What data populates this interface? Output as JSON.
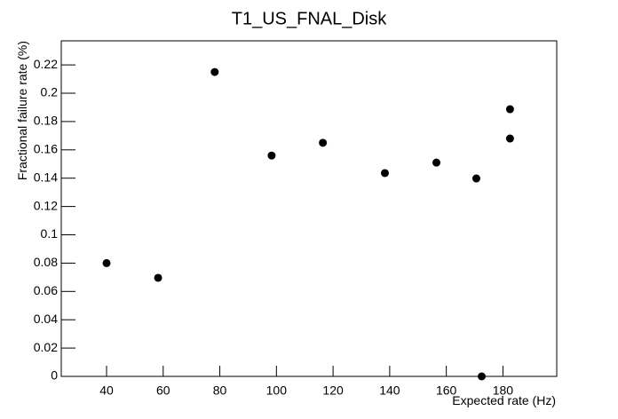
{
  "chart_data": {
    "type": "scatter",
    "title": "T1_US_FNAL_Disk",
    "x_label": "Expected rate (Hz)",
    "y_label": "Fractional failure rate (%)",
    "x": [
      40,
      58.2,
      78.2,
      98.3,
      116.4,
      138.3,
      156.5,
      170.6,
      172.5,
      182.5,
      182.5
    ],
    "values": [
      0.08,
      0.0696,
      0.215,
      0.156,
      0.165,
      0.1436,
      0.151,
      0.1398,
      0,
      0.1887,
      0.168
    ],
    "color": "#000000",
    "xlim": [
      24,
      199
    ],
    "ylim": [
      0,
      0.237
    ],
    "xticks": [
      40,
      60,
      80,
      100,
      120,
      140,
      160,
      180
    ],
    "yticks": [
      0,
      0.02,
      0.04,
      0.06,
      0.08,
      0.1,
      0.12,
      0.14,
      0.16,
      0.18,
      0.2,
      0.22
    ]
  }
}
